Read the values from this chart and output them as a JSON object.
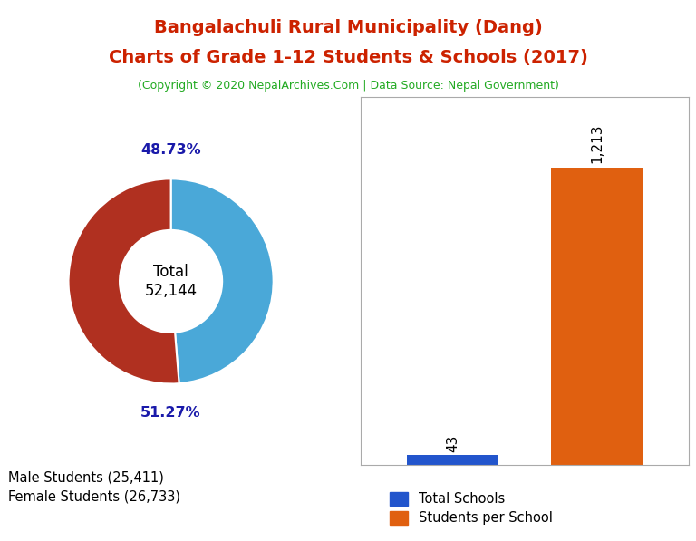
{
  "title_line1": "Bangalachuli Rural Municipality (Dang)",
  "title_line2": "Charts of Grade 1-12 Students & Schools (2017)",
  "subtitle": "(Copyright © 2020 NepalArchives.Com | Data Source: Nepal Government)",
  "title_color": "#cc2200",
  "subtitle_color": "#22aa22",
  "donut_values": [
    25411,
    26733
  ],
  "donut_labels": [
    "Male Students (25,411)",
    "Female Students (26,733)"
  ],
  "donut_colors": [
    "#4aa8d8",
    "#b03020"
  ],
  "donut_pct_labels": [
    "48.73%",
    "51.27%"
  ],
  "donut_total_label": "Total\n52,144",
  "donut_pct_color": "#1a1aaa",
  "bar_categories": [
    "Total Schools",
    "Students per School"
  ],
  "bar_values": [
    43,
    1213
  ],
  "bar_colors": [
    "#2255cc",
    "#e06010"
  ],
  "bar_value_labels": [
    "43",
    "1,213"
  ],
  "background_color": "#ffffff"
}
